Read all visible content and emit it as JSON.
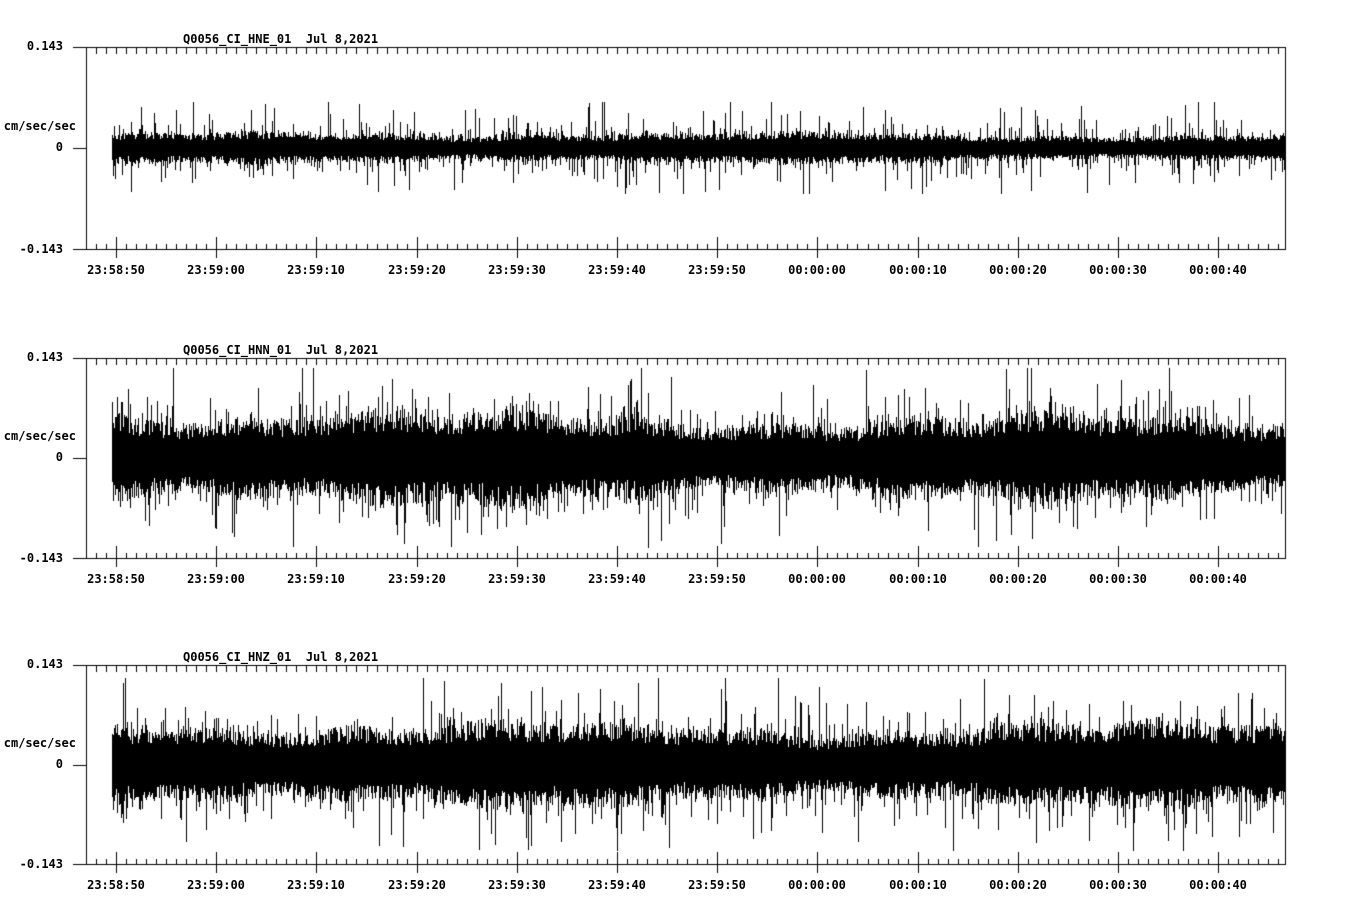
{
  "page": {
    "background_color": "#ffffff",
    "ink_color": "#000000",
    "description": "Three-channel strong-motion accelerogram record display"
  },
  "chart_data": [
    {
      "type": "line",
      "channel": "HNE",
      "title": "Q0056_CI_HNE_01",
      "date_label": "Jul 8,2021",
      "title_full": "Q0056_CI_HNE_01  Jul 8,2021",
      "ylabel": "cm/sec/sec",
      "ylim": [
        -0.143,
        0.143
      ],
      "ytick_labels": [
        "0.143",
        "0",
        "-0.143"
      ],
      "xtick_labels": [
        "23:58:50",
        "23:59:00",
        "23:59:10",
        "23:59:20",
        "23:59:30",
        "23:59:40",
        "23:59:50",
        "00:00:00",
        "00:00:10",
        "00:00:20",
        "00:00:30",
        "00:00:40"
      ],
      "x_minor_interval_s": 1,
      "x_major_interval_s": 10,
      "signal": {
        "kind": "broadband accelerometer noise",
        "units": "cm/sec/sec",
        "core_amplitude": 0.018,
        "typical_peak": 0.045,
        "max_peak": 0.065,
        "seed": 7,
        "spikes": []
      }
    },
    {
      "type": "line",
      "channel": "HNN",
      "title": "Q0056_CI_HNN_01",
      "date_label": "Jul 8,2021",
      "title_full": "Q0056_CI_HNN_01  Jul 8,2021",
      "ylabel": "cm/sec/sec",
      "ylim": [
        -0.143,
        0.143
      ],
      "ytick_labels": [
        "0.143",
        "0",
        "-0.143"
      ],
      "xtick_labels": [
        "23:58:50",
        "23:59:00",
        "23:59:10",
        "23:59:20",
        "23:59:30",
        "23:59:40",
        "23:59:50",
        "00:00:00",
        "00:00:10",
        "00:00:20",
        "00:00:30",
        "00:00:40"
      ],
      "x_minor_interval_s": 1,
      "x_major_interval_s": 10,
      "signal": {
        "kind": "broadband accelerometer noise",
        "units": "cm/sec/sec",
        "core_amplitude": 0.058,
        "typical_peak": 0.1,
        "max_peak": 0.128,
        "seed": 13,
        "spikes": [
          [
            0.162,
            0.128
          ],
          [
            0.52,
            -0.122
          ],
          [
            0.643,
            0.126
          ]
        ]
      }
    },
    {
      "type": "line",
      "channel": "HNZ",
      "title": "Q0056_CI_HNZ_01",
      "date_label": "Jul 8,2021",
      "title_full": "Q0056_CI_HNZ_01  Jul 8,2021",
      "ylabel": "cm/sec/sec",
      "ylim": [
        -0.143,
        0.143
      ],
      "ytick_labels": [
        "0.143",
        "0",
        "-0.143"
      ],
      "xtick_labels": [
        "23:58:50",
        "23:59:00",
        "23:59:10",
        "23:59:20",
        "23:59:30",
        "23:59:40",
        "23:59:50",
        "00:00:00",
        "00:00:10",
        "00:00:20",
        "00:00:30",
        "00:00:40"
      ],
      "x_minor_interval_s": 1,
      "x_major_interval_s": 10,
      "signal": {
        "kind": "broadband accelerometer noise",
        "units": "cm/sec/sec",
        "core_amplitude": 0.056,
        "typical_peak": 0.098,
        "max_peak": 0.124,
        "seed": 21,
        "spikes": [
          [
            0.744,
            0.122
          ]
        ]
      }
    }
  ],
  "layout_hint": {
    "grid": "off",
    "legend": "none",
    "frames": "closed box, inward second ticks top and bottom, labeled 10 s major ticks on bottom"
  }
}
